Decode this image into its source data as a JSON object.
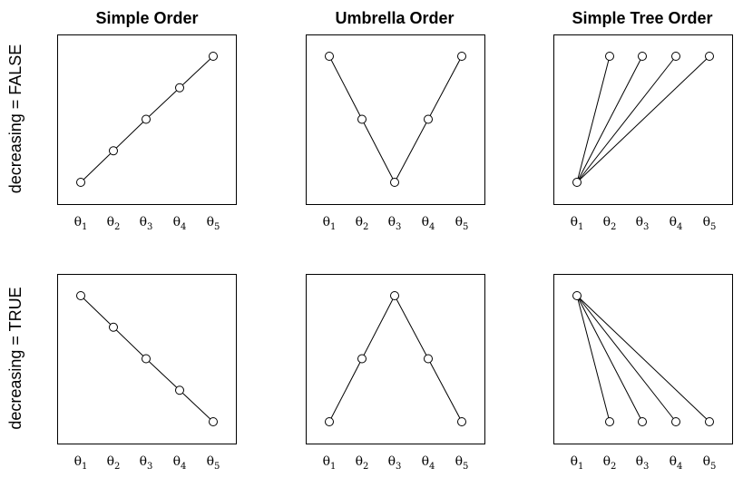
{
  "column_titles": [
    "Simple Order",
    "Umbrella Order",
    "Simple Tree Order"
  ],
  "row_titles": [
    "decreasing = FALSE",
    "decreasing = TRUE"
  ],
  "tick_symbol": "θ",
  "tick_subscripts": [
    "1",
    "2",
    "3",
    "4",
    "5"
  ],
  "colors": {
    "line": "#000000",
    "node_fill": "#ffffff",
    "background": "#ffffff"
  },
  "panels": [
    {
      "row": 0,
      "col": 0,
      "levels": [
        1,
        2,
        3,
        4,
        5
      ],
      "edges": [
        [
          0,
          1
        ],
        [
          1,
          2
        ],
        [
          2,
          3
        ],
        [
          3,
          4
        ]
      ]
    },
    {
      "row": 0,
      "col": 1,
      "levels": [
        5,
        3,
        1,
        3,
        5
      ],
      "edges": [
        [
          0,
          1
        ],
        [
          1,
          2
        ],
        [
          2,
          3
        ],
        [
          3,
          4
        ]
      ]
    },
    {
      "row": 0,
      "col": 2,
      "levels": [
        1,
        5,
        5,
        5,
        5
      ],
      "edges": [
        [
          0,
          1
        ],
        [
          0,
          2
        ],
        [
          0,
          3
        ],
        [
          0,
          4
        ]
      ]
    },
    {
      "row": 1,
      "col": 0,
      "levels": [
        5,
        4,
        3,
        2,
        1
      ],
      "edges": [
        [
          0,
          1
        ],
        [
          1,
          2
        ],
        [
          2,
          3
        ],
        [
          3,
          4
        ]
      ]
    },
    {
      "row": 1,
      "col": 1,
      "levels": [
        1,
        3,
        5,
        3,
        1
      ],
      "edges": [
        [
          0,
          1
        ],
        [
          1,
          2
        ],
        [
          2,
          3
        ],
        [
          3,
          4
        ]
      ]
    },
    {
      "row": 1,
      "col": 2,
      "levels": [
        5,
        1,
        1,
        1,
        1
      ],
      "edges": [
        [
          0,
          1
        ],
        [
          0,
          2
        ],
        [
          0,
          3
        ],
        [
          0,
          4
        ]
      ]
    }
  ]
}
